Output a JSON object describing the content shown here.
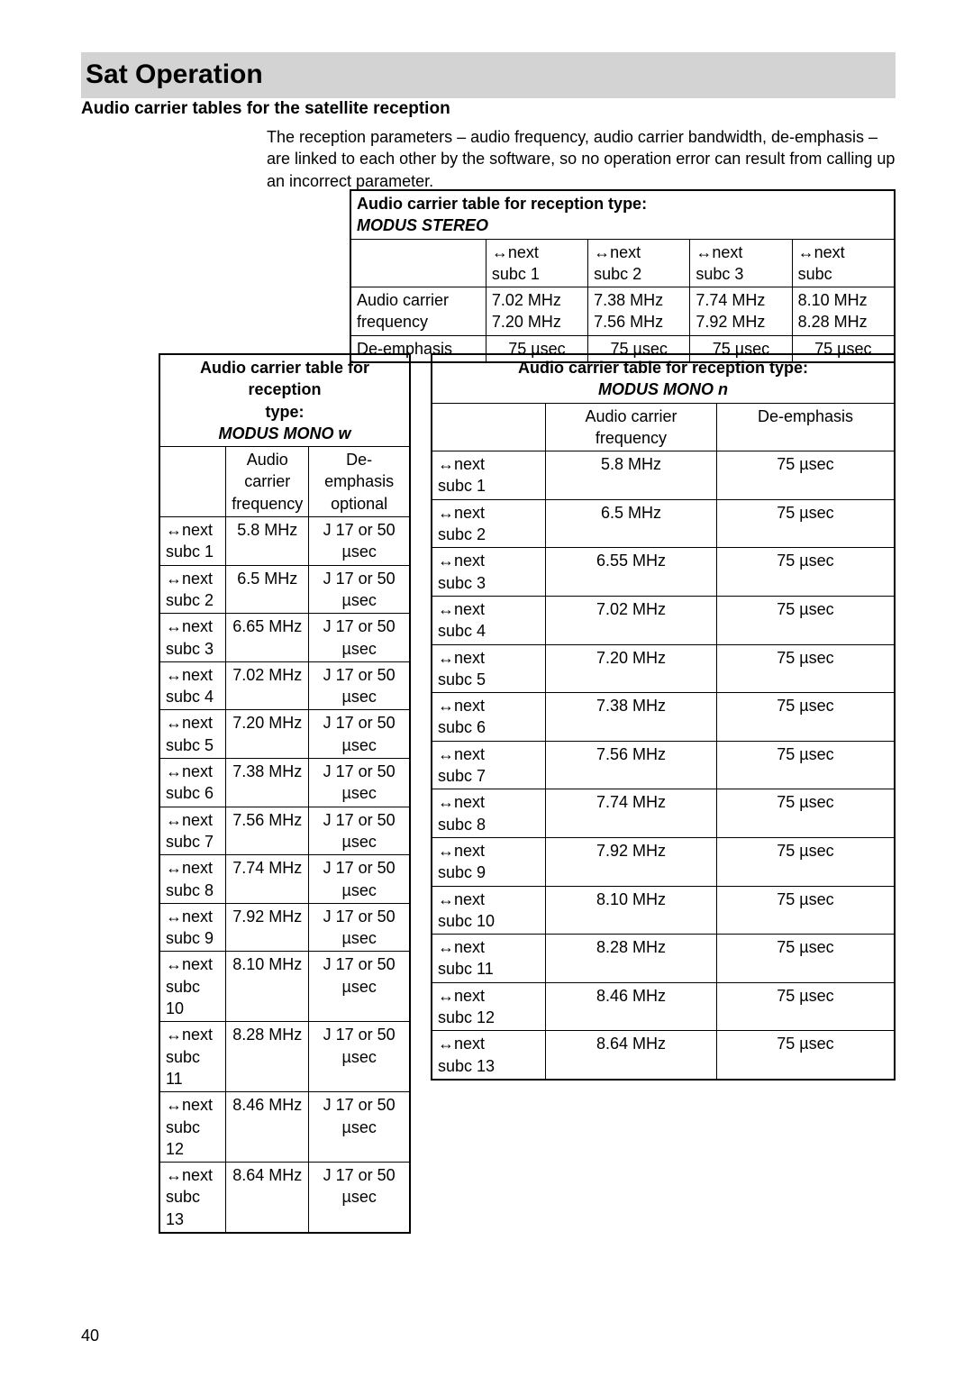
{
  "page": {
    "title": "Sat Operation",
    "section_heading": "Audio carrier tables for the satellite reception",
    "paragraph": "The reception parameters – audio frequency, audio carrier bandwidth, de-emphasis – are linked to each other by the software, so no operation error can result from calling up an incorrect parameter.",
    "page_number": "40"
  },
  "arrow": "↔",
  "stereo": {
    "caption_line1": "Audio carrier table for reception type:",
    "caption_line2": "MODUS STEREO",
    "cols": [
      {
        "h1": "↔next",
        "h2": "subc 1"
      },
      {
        "h1": "↔next",
        "h2": "subc 2"
      },
      {
        "h1": "↔next",
        "h2": "subc 3"
      },
      {
        "h1": "↔next",
        "h2": "subc"
      }
    ],
    "row_labels": [
      "Audio carrier",
      "frequency"
    ],
    "freq_rows": [
      "7.02 MHz",
      "7.38 MHz",
      "7.74 MHz",
      "8.10 MHz",
      "7.20 MHz",
      "7.56 MHz",
      "7.92 MHz",
      "8.28 MHz"
    ],
    "deemph_label": "De-emphasis",
    "deemph_vals": [
      "75 µsec",
      "75 µsec",
      "75 µsec",
      "75 µsec"
    ]
  },
  "mono_w": {
    "caption_line1": "Audio carrier table for reception",
    "caption_line2": "type:",
    "caption_line3": "MODUS MONO w",
    "headers": {
      "c2a": "Audio",
      "c2b": "carrier",
      "c2c": "frequency",
      "c3a": "De-emphasis",
      "c3b": "optional"
    },
    "rows": [
      {
        "a": "↔next",
        "b": "subc 1",
        "f": "5.8 MHz",
        "d1": "J 17 or 50",
        "d2": "µsec"
      },
      {
        "a": "↔next",
        "b": "subc 2",
        "f": "6.5 MHz",
        "d1": "J 17 or 50",
        "d2": "µsec"
      },
      {
        "a": "↔next",
        "b": "subc 3",
        "f": "6.65 MHz",
        "d1": "J 17 or 50",
        "d2": "µsec"
      },
      {
        "a": "↔next",
        "b": "subc 4",
        "f": "7.02 MHz",
        "d1": "J 17 or 50",
        "d2": "µsec"
      },
      {
        "a": "↔next",
        "b": "subc 5",
        "f": "7.20 MHz",
        "d1": "J 17 or 50",
        "d2": "µsec"
      },
      {
        "a": "↔next",
        "b": "subc 6",
        "f": "7.38 MHz",
        "d1": "J 17 or 50",
        "d2": "µsec"
      },
      {
        "a": "↔next",
        "b": "subc 7",
        "f": "7.56 MHz",
        "d1": "J 17 or 50",
        "d2": "µsec"
      },
      {
        "a": "↔next",
        "b": "subc 8",
        "f": "7.74 MHz",
        "d1": "J 17 or 50",
        "d2": "µsec"
      },
      {
        "a": "↔next",
        "b": "subc 9",
        "f": "7.92 MHz",
        "d1": "J 17 or 50",
        "d2": "µsec"
      },
      {
        "a": "↔next",
        "b": "subc 10",
        "f": "8.10 MHz",
        "d1": "J 17 or 50",
        "d2": "µsec"
      },
      {
        "a": "↔next",
        "b": "subc 11",
        "f": "8.28 MHz",
        "d1": "J 17 or 50",
        "d2": "µsec"
      },
      {
        "a": "↔next",
        "b": "subc 12",
        "f": "8.46 MHz",
        "d1": "J 17 or 50",
        "d2": "µsec"
      },
      {
        "a": "↔next",
        "b": "subc 13",
        "f": "8.64 MHz",
        "d1": "J 17 or 50",
        "d2": "µsec"
      }
    ]
  },
  "mono_n": {
    "caption_line1": "Audio carrier table for reception type:",
    "caption_line2": "MODUS MONO n",
    "headers": {
      "c2a": "Audio carrier",
      "c2b": "frequency",
      "c3": "De-emphasis"
    },
    "rows": [
      {
        "a": "↔next",
        "b": "subc 1",
        "f": "5.8 MHz",
        "d": "75 µsec"
      },
      {
        "a": "↔next",
        "b": "subc 2",
        "f": "6.5 MHz",
        "d": "75 µsec"
      },
      {
        "a": "↔next",
        "b": "subc 3",
        "f": "6.55 MHz",
        "d": "75 µsec"
      },
      {
        "a": "↔next",
        "b": "subc 4",
        "f": "7.02 MHz",
        "d": "75 µsec"
      },
      {
        "a": "↔next",
        "b": "subc 5",
        "f": "7.20 MHz",
        "d": "75 µsec"
      },
      {
        "a": "↔next",
        "b": "subc 6",
        "f": "7.38 MHz",
        "d": "75 µsec"
      },
      {
        "a": "↔next",
        "b": "subc 7",
        "f": "7.56 MHz",
        "d": "75 µsec"
      },
      {
        "a": "↔next",
        "b": "subc 8",
        "f": "7.74 MHz",
        "d": "75 µsec"
      },
      {
        "a": "↔next",
        "b": "subc 9",
        "f": "7.92 MHz",
        "d": "75 µsec"
      },
      {
        "a": "↔next",
        "b": "subc 10",
        "f": "8.10 MHz",
        "d": "75 µsec"
      },
      {
        "a": "↔next",
        "b": "subc 11",
        "f": "8.28 MHz",
        "d": "75 µsec"
      },
      {
        "a": "↔next",
        "b": "subc 12",
        "f": "8.46 MHz",
        "d": "75 µsec"
      },
      {
        "a": "↔next",
        "b": "subc 13",
        "f": "8.64 MHz",
        "d": "75 µsec"
      }
    ]
  }
}
